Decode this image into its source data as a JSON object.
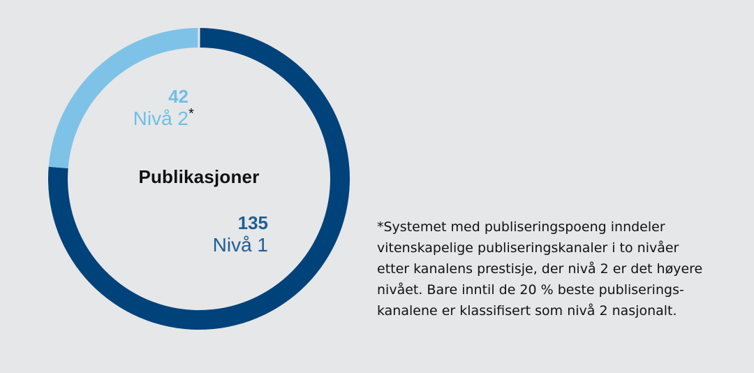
{
  "chart_data": {
    "type": "pie",
    "variant": "donut",
    "center_label": "Publikasjoner",
    "slices": [
      {
        "label": "Nivå 1",
        "value": 135,
        "color": "#00427a"
      },
      {
        "label": "Nivå 2",
        "value": 42,
        "color": "#7ec2e8"
      }
    ],
    "marker": "*"
  },
  "footnote": {
    "lines": [
      "*Systemet med publiseringspoeng inndeler",
      "vitenskapelige publiseringskanaler i to nivåer",
      "etter kanalens prestisje, der nivå 2 er det høyere",
      "nivået. Bare inntil de 20 % beste publiserings-",
      "kanalene er klassifisert som nivå 2 nasjonalt."
    ]
  },
  "colors": {
    "background": "#e6e7e8",
    "level1": "#00427a",
    "level2": "#7ec2e8",
    "level1_label": "#1f5d96",
    "level2_label": "#6fbfe6"
  }
}
